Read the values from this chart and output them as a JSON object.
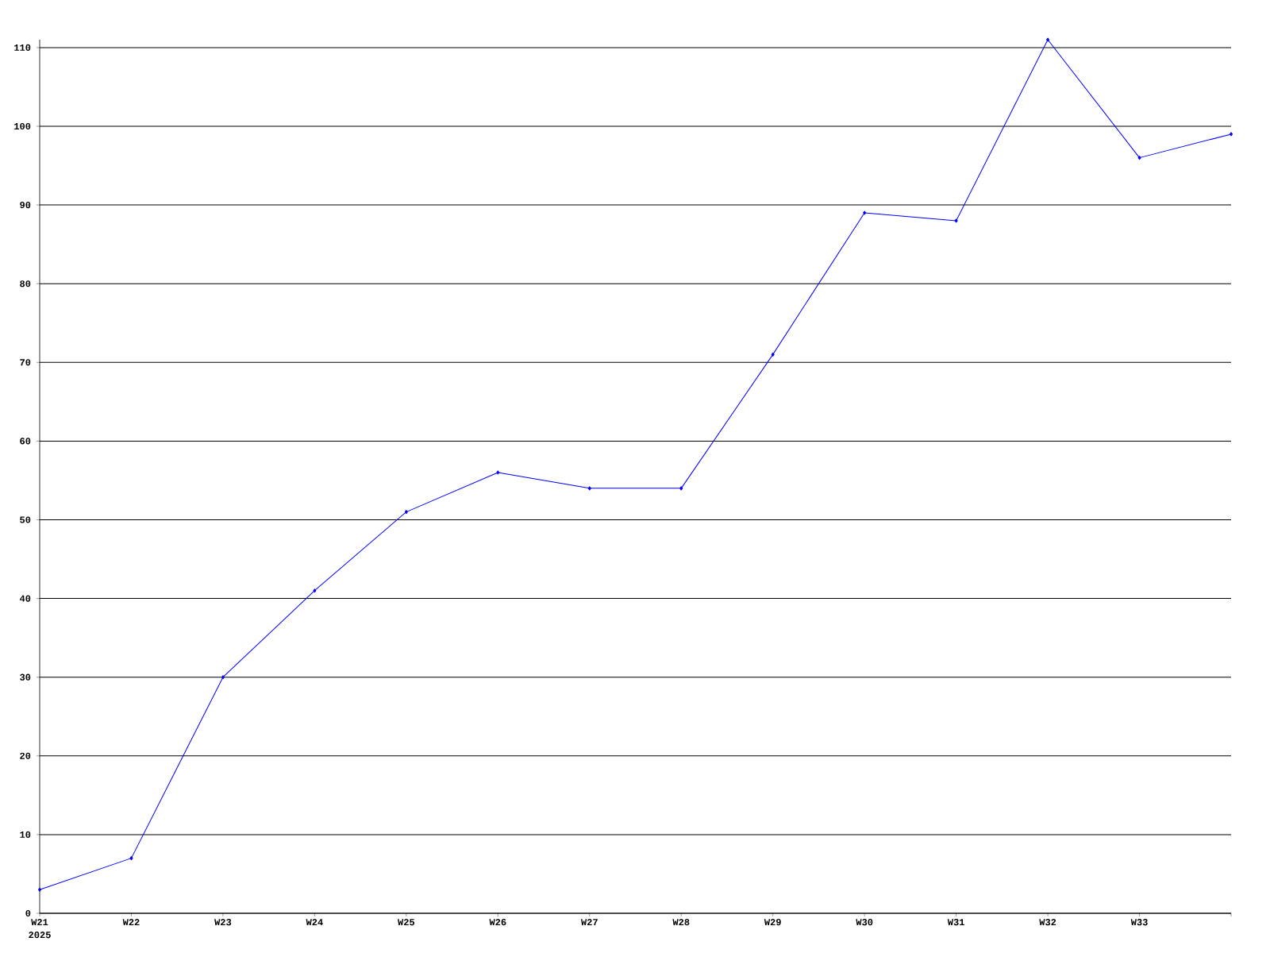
{
  "chart_data": {
    "type": "line",
    "categories": [
      "W21",
      "W22",
      "W23",
      "W24",
      "W25",
      "W26",
      "W27",
      "W28",
      "W29",
      "W30",
      "W31",
      "W32",
      "W33",
      null
    ],
    "values": [
      3,
      7,
      30,
      41,
      51,
      56,
      54,
      54,
      71,
      89,
      88,
      111,
      96,
      99
    ],
    "color": "#0000ff",
    "marker": "diamond",
    "grid": "y",
    "ylim": [
      0,
      111
    ],
    "yticks": [
      0,
      10,
      20,
      30,
      40,
      50,
      60,
      70,
      80,
      90,
      100,
      110
    ],
    "annotations": [
      "2025"
    ]
  }
}
